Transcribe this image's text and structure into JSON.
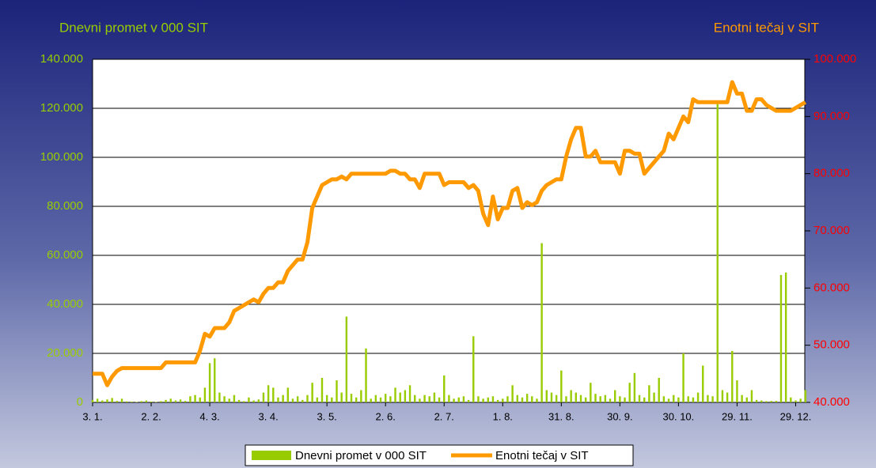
{
  "chart_data": {
    "type": "bar",
    "y_label": "Dnevni promet v 000 SIT",
    "y2_label": "Enotni tečaj v SIT",
    "categories": [
      "3. 1.",
      null,
      null,
      null,
      null,
      null,
      null,
      null,
      null,
      null,
      null,
      null,
      "2. 2.",
      null,
      null,
      null,
      null,
      null,
      null,
      null,
      null,
      null,
      null,
      null,
      "4. 3.",
      null,
      null,
      null,
      null,
      null,
      null,
      null,
      null,
      null,
      null,
      null,
      "3. 4.",
      null,
      null,
      null,
      null,
      null,
      null,
      null,
      null,
      null,
      null,
      null,
      "3. 5.",
      null,
      null,
      null,
      null,
      null,
      null,
      null,
      null,
      null,
      null,
      null,
      "2. 6.",
      null,
      null,
      null,
      null,
      null,
      null,
      null,
      null,
      null,
      null,
      null,
      "2. 7.",
      null,
      null,
      null,
      null,
      null,
      null,
      null,
      null,
      null,
      null,
      null,
      "1. 8.",
      null,
      null,
      null,
      null,
      null,
      null,
      null,
      null,
      null,
      null,
      null,
      "31. 8.",
      null,
      null,
      null,
      null,
      null,
      null,
      null,
      null,
      null,
      null,
      null,
      "30. 9.",
      null,
      null,
      null,
      null,
      null,
      null,
      null,
      null,
      null,
      null,
      null,
      "30. 10.",
      null,
      null,
      null,
      null,
      null,
      null,
      null,
      null,
      null,
      null,
      null,
      "29. 11.",
      null,
      null,
      null,
      null,
      null,
      null,
      null,
      null,
      null,
      null,
      null,
      "29. 12.",
      null,
      null
    ],
    "series": [
      {
        "name": "Dnevni promet v 000 SIT",
        "type": "bar",
        "color": "#99cc00",
        "values": [
          1000,
          1500,
          800,
          1200,
          1800,
          600,
          1500,
          400,
          300,
          200,
          500,
          800,
          300,
          200,
          500,
          1000,
          1500,
          800,
          1200,
          600,
          2500,
          3000,
          2000,
          6000,
          16000,
          18000,
          4000,
          2500,
          1500,
          3000,
          1000,
          500,
          2000,
          800,
          1200,
          4000,
          7000,
          6000,
          2000,
          3000,
          6000,
          1500,
          2500,
          1000,
          3000,
          8000,
          2000,
          10000,
          3000,
          2000,
          9000,
          4000,
          35000,
          3500,
          2000,
          5000,
          22000,
          1500,
          3000,
          2000,
          3500,
          2500,
          6000,
          4000,
          5000,
          7000,
          3000,
          1500,
          3000,
          2500,
          4000,
          2000,
          11000,
          3000,
          1500,
          2000,
          2500,
          1000,
          27000,
          2500,
          1500,
          2000,
          2500,
          1000,
          1500,
          2500,
          7000,
          3000,
          2000,
          3500,
          2500,
          1500,
          65000,
          5000,
          4000,
          3000,
          13000,
          2500,
          5000,
          4000,
          3000,
          2000,
          8000,
          3500,
          2500,
          3000,
          1500,
          5000,
          2500,
          2000,
          8000,
          12000,
          3000,
          2000,
          7000,
          4000,
          10000,
          2500,
          1500,
          3000,
          2000,
          20000,
          2500,
          2000,
          4000,
          15000,
          3000,
          2500,
          122000,
          5000,
          4000,
          21000,
          9000,
          3000,
          2000,
          5000,
          1000,
          800,
          500,
          600,
          600,
          52000,
          53000,
          2000,
          800,
          1500,
          5000
        ]
      },
      {
        "name": "Enotni tečaj v SIT",
        "type": "line",
        "axis": "y2",
        "color": "#ff9900",
        "values": [
          45000,
          45000,
          45000,
          43000,
          44500,
          45500,
          46000,
          46000,
          46000,
          46000,
          46000,
          46000,
          46000,
          46000,
          46000,
          47000,
          47000,
          47000,
          47000,
          47000,
          47000,
          47000,
          49000,
          52000,
          51500,
          53000,
          53000,
          53000,
          54000,
          56000,
          56500,
          57000,
          57500,
          58000,
          57500,
          59000,
          60000,
          60000,
          61000,
          61000,
          63000,
          64000,
          65000,
          65000,
          68000,
          74000,
          76000,
          78000,
          78500,
          79000,
          79000,
          79500,
          79000,
          80000,
          80000,
          80000,
          80000,
          80000,
          80000,
          80000,
          80000,
          80500,
          80500,
          80000,
          80000,
          79000,
          79000,
          77500,
          80000,
          80000,
          80000,
          80000,
          78000,
          78500,
          78500,
          78500,
          78500,
          77500,
          78000,
          77000,
          73000,
          71000,
          76000,
          72000,
          74000,
          74000,
          77000,
          77500,
          74000,
          75000,
          74500,
          75000,
          77000,
          78000,
          78500,
          79000,
          79000,
          83000,
          86000,
          88000,
          88000,
          83000,
          83000,
          84000,
          82000,
          82000,
          82000,
          82000,
          80000,
          84000,
          84000,
          83500,
          83500,
          80000,
          81000,
          82000,
          83000,
          84000,
          87000,
          86000,
          88000,
          90000,
          89000,
          93000,
          92500,
          92500,
          92500,
          92500,
          92500,
          92500,
          92500,
          96000,
          94000,
          94000,
          91000,
          91000,
          93000,
          93000,
          92000,
          91500,
          91000,
          91000,
          91000,
          91000,
          91500,
          92000,
          92500
        ]
      }
    ],
    "ylim": [
      0,
      140000
    ],
    "yticks": [
      0,
      {
        "value": 20000,
        "label": "20.000"
      },
      {
        "value": 40000,
        "label": "40.000"
      },
      {
        "value": 60000,
        "label": "60.000"
      },
      {
        "value": 80000,
        "label": "80.000"
      },
      {
        "value": 100000,
        "label": "100.000"
      },
      {
        "value": 120000,
        "label": "120.000"
      },
      {
        "value": 140000,
        "label": "140.000"
      }
    ],
    "y2lim": [
      40000,
      100000
    ],
    "y2ticks": [
      {
        "value": 40000,
        "label": "40.000"
      },
      {
        "value": 50000,
        "label": "50.000"
      },
      {
        "value": 60000,
        "label": "60.000"
      },
      {
        "value": 70000,
        "label": "70.000"
      },
      {
        "value": 80000,
        "label": "80.000"
      },
      {
        "value": 90000,
        "label": "90.000"
      },
      {
        "value": 100000,
        "label": "100.000"
      }
    ],
    "grid": true,
    "legend": "bottom"
  }
}
